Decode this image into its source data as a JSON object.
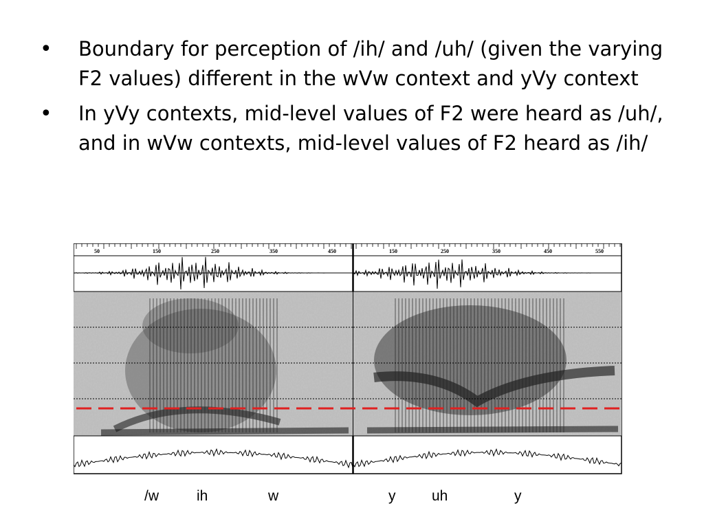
{
  "bullets": [
    "Boundary for perception of /ih/ and /uh/ (given the varying F2 values) different in the wVw context and yVy context",
    "In yVy contexts, mid-level values of F2 were heard as /uh/, and in wVw contexts, mid-level values of F2 heard as /ih/"
  ],
  "panels": [
    {
      "ticks": [
        "50",
        "150",
        "250",
        "350",
        "450"
      ],
      "phones": [
        "/w",
        "ih",
        "w"
      ]
    },
    {
      "ticks": [
        "150",
        "250",
        "350",
        "450",
        "550"
      ],
      "phones": [
        "y",
        "uh",
        "y"
      ]
    }
  ],
  "colors": {
    "boundary_line": "#e02020",
    "grid": "#000000"
  }
}
